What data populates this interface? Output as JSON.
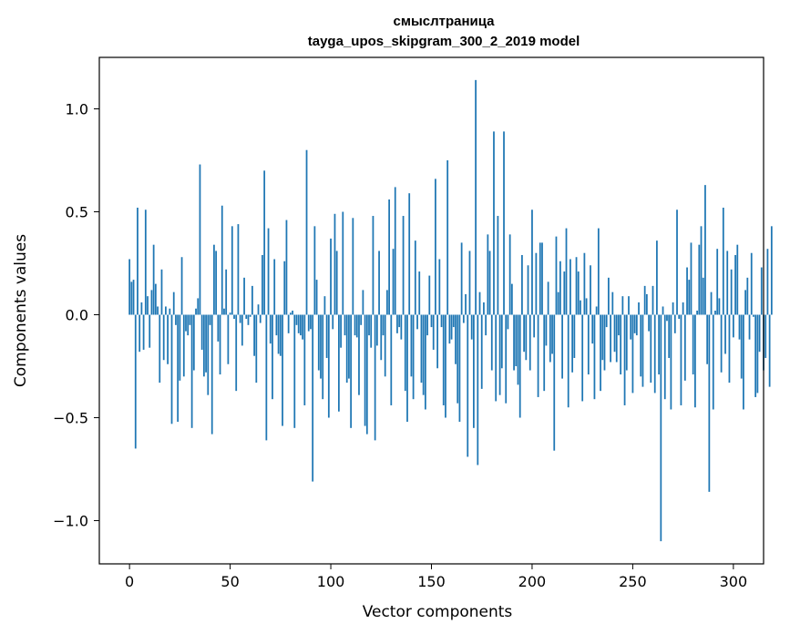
{
  "chart_data": {
    "type": "bar",
    "title_line1": "смыслтраница",
    "title_line2": "tayga_upos_skipgram_300_2_2019 model",
    "xlabel": "Vector components",
    "ylabel": "Components values",
    "xlim": [
      -15,
      315
    ],
    "ylim": [
      -1.21,
      1.25
    ],
    "x_ticks": [
      0,
      50,
      100,
      150,
      200,
      250,
      300
    ],
    "x_tick_labels": [
      "0",
      "50",
      "100",
      "150",
      "200",
      "250",
      "300"
    ],
    "y_ticks": [
      1.0,
      0.5,
      0.0,
      -0.5,
      -1.0
    ],
    "y_tick_labels": [
      "1.0",
      "0.5",
      "0.0",
      "−0.5",
      "−1.0"
    ],
    "grid": false,
    "bar_color": "#1f77b4",
    "values": [
      0.27,
      0.16,
      0.17,
      -0.65,
      0.52,
      -0.18,
      0.06,
      -0.17,
      0.51,
      0.09,
      -0.16,
      0.12,
      0.34,
      0.15,
      0.04,
      -0.33,
      0.22,
      -0.22,
      0.04,
      -0.24,
      0.03,
      -0.53,
      0.11,
      -0.05,
      -0.52,
      -0.32,
      0.28,
      -0.3,
      -0.08,
      -0.1,
      -0.05,
      -0.55,
      -0.27,
      0.03,
      0.08,
      0.73,
      -0.17,
      -0.3,
      -0.28,
      -0.39,
      -0.05,
      -0.58,
      0.34,
      0.31,
      -0.13,
      -0.29,
      0.53,
      0.03,
      0.22,
      -0.24,
      0.01,
      0.43,
      -0.02,
      -0.37,
      0.44,
      -0.04,
      -0.15,
      0.18,
      -0.02,
      -0.05,
      -0.01,
      0.14,
      -0.2,
      -0.33,
      0.05,
      -0.04,
      0.29,
      0.7,
      -0.61,
      0.42,
      -0.14,
      -0.41,
      0.27,
      -0.1,
      -0.19,
      -0.2,
      -0.54,
      0.26,
      0.46,
      -0.09,
      0.01,
      0.02,
      -0.55,
      -0.05,
      -0.09,
      -0.1,
      -0.12,
      -0.44,
      0.8,
      -0.08,
      -0.07,
      -0.81,
      0.43,
      0.17,
      -0.27,
      -0.31,
      -0.41,
      0.09,
      -0.21,
      -0.5,
      0.37,
      -0.07,
      0.49,
      0.31,
      -0.47,
      -0.16,
      0.5,
      -0.1,
      -0.33,
      -0.31,
      -0.55,
      0.47,
      -0.1,
      -0.11,
      -0.39,
      -0.05,
      0.12,
      -0.54,
      -0.58,
      -0.1,
      -0.16,
      0.48,
      -0.61,
      -0.15,
      0.31,
      -0.22,
      -0.1,
      -0.3,
      0.12,
      0.56,
      -0.44,
      0.32,
      0.62,
      -0.09,
      -0.06,
      -0.12,
      0.48,
      -0.37,
      -0.52,
      0.59,
      -0.3,
      -0.41,
      0.36,
      -0.07,
      0.21,
      -0.33,
      -0.39,
      -0.46,
      -0.1,
      0.19,
      -0.06,
      -0.17,
      0.66,
      -0.26,
      0.27,
      -0.06,
      -0.44,
      -0.5,
      0.75,
      -0.14,
      -0.12,
      -0.06,
      -0.24,
      -0.43,
      -0.52,
      0.35,
      -0.04,
      0.1,
      -0.69,
      0.31,
      -0.12,
      -0.55,
      1.14,
      -0.73,
      0.11,
      -0.36,
      0.06,
      -0.1,
      0.39,
      0.31,
      -0.27,
      0.89,
      -0.42,
      0.48,
      -0.39,
      -0.26,
      0.89,
      -0.43,
      -0.07,
      0.39,
      0.15,
      -0.27,
      -0.25,
      -0.34,
      -0.5,
      0.29,
      -0.18,
      -0.22,
      0.24,
      -0.27,
      0.51,
      -0.11,
      0.3,
      -0.4,
      0.35,
      0.35,
      -0.37,
      -0.15,
      0.16,
      -0.23,
      -0.19,
      -0.66,
      0.38,
      0.11,
      0.26,
      -0.31,
      0.21,
      0.42,
      -0.45,
      0.27,
      -0.28,
      -0.21,
      0.28,
      0.21,
      0.07,
      -0.42,
      0.3,
      0.08,
      -0.29,
      0.24,
      -0.14,
      -0.41,
      0.04,
      0.42,
      -0.37,
      -0.22,
      -0.27,
      -0.06,
      0.18,
      -0.23,
      0.11,
      -0.18,
      -0.23,
      -0.1,
      -0.29,
      0.09,
      -0.44,
      -0.27,
      0.09,
      -0.12,
      -0.38,
      -0.09,
      -0.1,
      0.06,
      -0.3,
      -0.35,
      0.14,
      0.1,
      -0.08,
      -0.33,
      0.14,
      -0.38,
      0.36,
      -0.29,
      -1.1,
      0.04,
      -0.41,
      -0.03,
      -0.21,
      -0.46,
      0.06,
      -0.09,
      0.51,
      -0.02,
      -0.44,
      0.06,
      -0.32,
      0.23,
      0.17,
      0.35,
      -0.29,
      -0.45,
      0.02,
      0.34,
      0.43,
      0.18,
      0.63,
      -0.24,
      -0.86,
      0.11,
      -0.46,
      0.02,
      0.32,
      0.08,
      -0.28,
      0.52,
      -0.19,
      0.31,
      -0.33,
      0.22,
      -0.11,
      0.29,
      0.34,
      -0.12,
      -0.31,
      -0.46,
      0.12,
      0.18,
      -0.12,
      0.3,
      -0.01,
      -0.4,
      -0.38,
      -0.18,
      0.23,
      -0.27,
      -0.21,
      0.32,
      -0.35,
      0.43
    ]
  }
}
